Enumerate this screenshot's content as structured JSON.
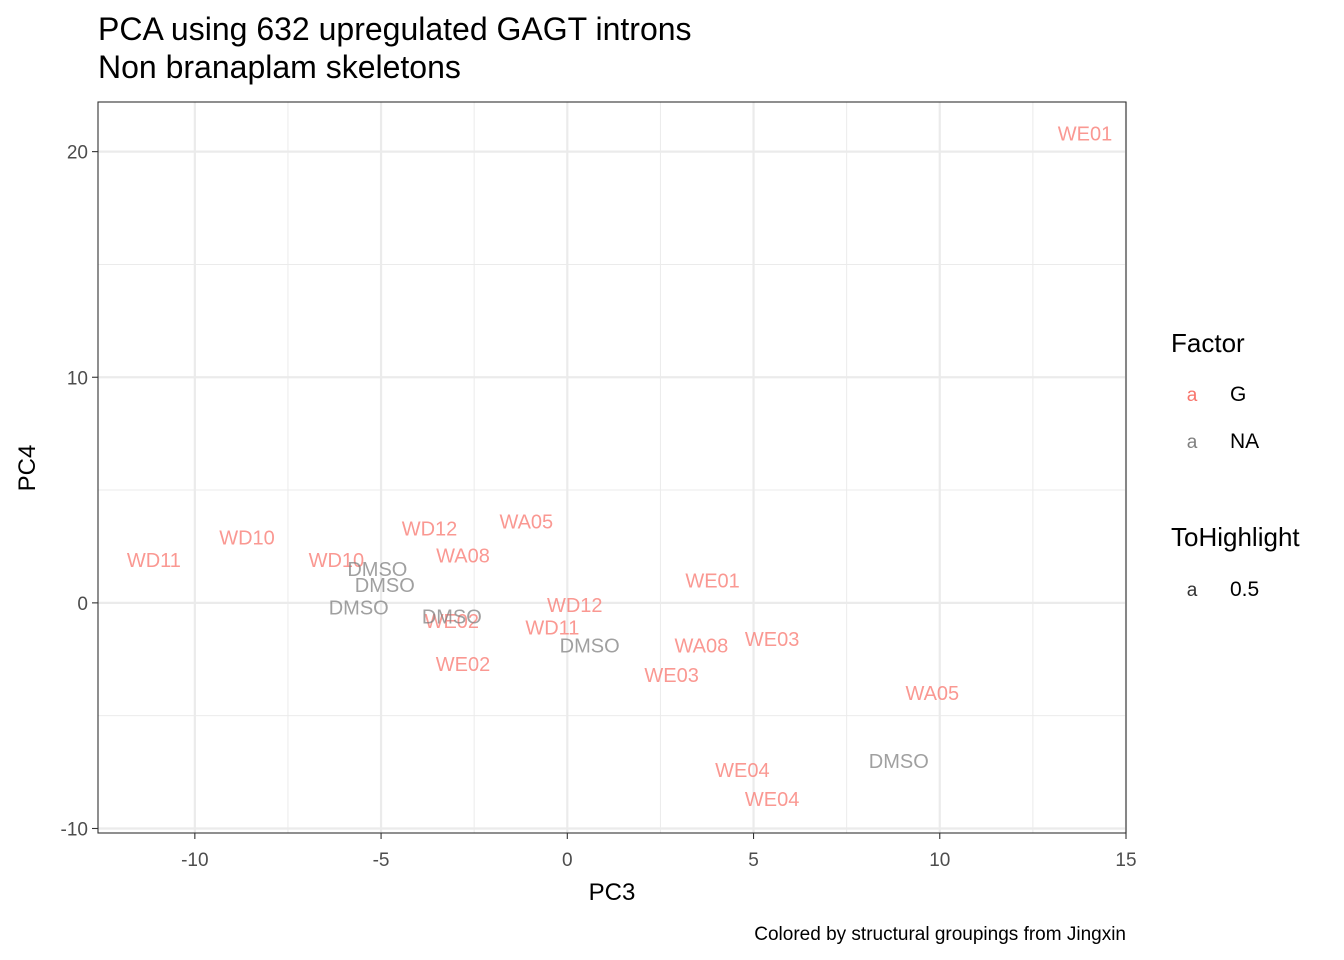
{
  "chart_data": {
    "type": "scatter",
    "title": "PCA using 632 upregulated GAGT introns",
    "subtitle": "Non branaplam skeletons",
    "xlabel": "PC3",
    "ylabel": "PC4",
    "caption": "Colored by structural groupings from Jingxin",
    "xlim": [
      -12.6,
      15.0
    ],
    "ylim": [
      -10.2,
      22.2
    ],
    "xticks": [
      -10,
      -5,
      0,
      5,
      10,
      15
    ],
    "xtick_labels": [
      "-10",
      "-5",
      "0",
      "5",
      "10",
      "15"
    ],
    "yticks": [
      -10,
      0,
      10,
      20
    ],
    "ytick_labels": [
      "-10",
      "0",
      "10",
      "20"
    ],
    "grid": true,
    "series": [
      {
        "name": "G",
        "color": "#F8766D",
        "points": [
          {
            "label": "WE01",
            "x": 13.9,
            "y": 20.8
          },
          {
            "label": "WD11",
            "x": -11.1,
            "y": 1.9
          },
          {
            "label": "WD10",
            "x": -8.6,
            "y": 2.9
          },
          {
            "label": "WD10",
            "x": -6.2,
            "y": 1.9
          },
          {
            "label": "WD12",
            "x": -3.7,
            "y": 3.3
          },
          {
            "label": "WA05",
            "x": -1.1,
            "y": 3.6
          },
          {
            "label": "WA08",
            "x": -2.8,
            "y": 2.1
          },
          {
            "label": "WE01",
            "x": 3.9,
            "y": 1.0
          },
          {
            "label": "WD12",
            "x": 0.2,
            "y": -0.1
          },
          {
            "label": "WE02",
            "x": -3.1,
            "y": -0.8
          },
          {
            "label": "WD11",
            "x": -0.4,
            "y": -1.1
          },
          {
            "label": "WA08",
            "x": 3.6,
            "y": -1.9
          },
          {
            "label": "WE03",
            "x": 5.5,
            "y": -1.6
          },
          {
            "label": "WE02",
            "x": -2.8,
            "y": -2.7
          },
          {
            "label": "WE03",
            "x": 2.8,
            "y": -3.2
          },
          {
            "label": "WA05",
            "x": 9.8,
            "y": -4.0
          },
          {
            "label": "WE04",
            "x": 4.7,
            "y": -7.4
          },
          {
            "label": "WE04",
            "x": 5.5,
            "y": -8.7
          }
        ]
      },
      {
        "name": "NA",
        "color": "#808080",
        "points": [
          {
            "label": "DMSO",
            "x": -5.1,
            "y": 1.5
          },
          {
            "label": "DMSO",
            "x": -4.9,
            "y": 0.8
          },
          {
            "label": "DMSO",
            "x": -5.6,
            "y": -0.2
          },
          {
            "label": "DMSO",
            "x": -3.1,
            "y": -0.6
          },
          {
            "label": "DMSO",
            "x": 0.6,
            "y": -1.9
          },
          {
            "label": "DMSO",
            "x": 8.9,
            "y": -7.0
          }
        ]
      }
    ],
    "legend": {
      "placement": "right",
      "groups": [
        {
          "title": "Factor",
          "entries": [
            {
              "key": "a",
              "label": "G",
              "color": "#F8766D"
            },
            {
              "key": "a",
              "label": "NA",
              "color": "#808080"
            }
          ]
        },
        {
          "title": "ToHighlight",
          "entries": [
            {
              "key": "a",
              "label": "0.5",
              "color": "#333333"
            }
          ]
        }
      ]
    }
  }
}
